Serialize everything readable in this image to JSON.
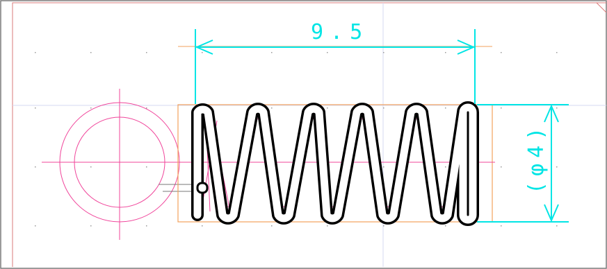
{
  "drawing": {
    "dimensions": {
      "length_label": "9.5",
      "diameter_label": "(φ4)"
    },
    "colors": {
      "background": "#ffffff",
      "frame": "#d97a7a",
      "border": "#7a7a7a",
      "grid_dot": "#9a9a9a",
      "grid_line": "#d6d9f2",
      "dimension": "#00e5e5",
      "outline_box": "#f2a25c",
      "construction": "#f0449a",
      "coil": "#000000",
      "hook_line": "#777777"
    }
  }
}
